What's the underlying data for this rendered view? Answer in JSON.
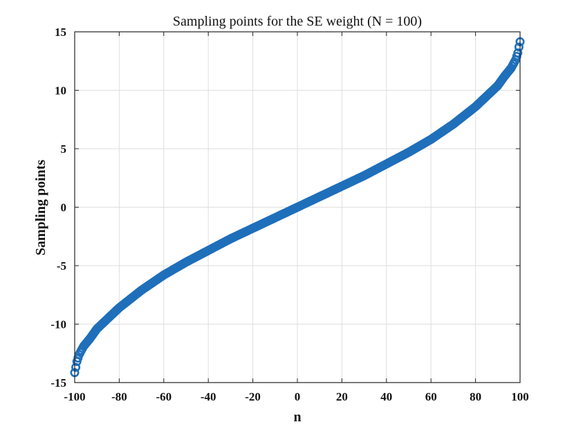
{
  "chart_data": {
    "type": "scatter",
    "title": "Sampling points for the SE weight (N = 100)",
    "xlabel": "n",
    "ylabel": "Sampling points",
    "xlim": [
      -100,
      100
    ],
    "ylim": [
      -15,
      15
    ],
    "xticks": [
      -100,
      -80,
      -60,
      -40,
      -20,
      0,
      20,
      40,
      60,
      80,
      100
    ],
    "yticks": [
      15,
      10,
      5,
      0,
      -5,
      -10,
      -15
    ],
    "grid": true,
    "marker": "circle",
    "series_color": "#1f6fba",
    "x_range": [
      -100,
      100
    ],
    "x_step": 0.5,
    "points": [
      [
        -100,
        -14.15
      ],
      [
        -99.5,
        -13.7
      ],
      [
        -99,
        -13.2
      ],
      [
        -98,
        -12.6
      ],
      [
        -96,
        -11.9
      ],
      [
        -93,
        -11.2
      ],
      [
        -90,
        -10.4
      ],
      [
        -85,
        -9.5
      ],
      [
        -80,
        -8.6
      ],
      [
        -70,
        -7.1
      ],
      [
        -60,
        -5.8
      ],
      [
        -50,
        -4.7
      ],
      [
        -40,
        -3.7
      ],
      [
        -30,
        -2.7
      ],
      [
        -20,
        -1.8
      ],
      [
        -10,
        -0.9
      ],
      [
        0,
        0
      ],
      [
        10,
        0.9
      ],
      [
        20,
        1.8
      ],
      [
        30,
        2.7
      ],
      [
        40,
        3.7
      ],
      [
        50,
        4.7
      ],
      [
        60,
        5.8
      ],
      [
        70,
        7.1
      ],
      [
        80,
        8.6
      ],
      [
        85,
        9.5
      ],
      [
        90,
        10.4
      ],
      [
        93,
        11.2
      ],
      [
        96,
        11.9
      ],
      [
        98,
        12.6
      ],
      [
        99,
        13.2
      ],
      [
        99.5,
        13.7
      ],
      [
        100,
        14.15
      ]
    ]
  }
}
